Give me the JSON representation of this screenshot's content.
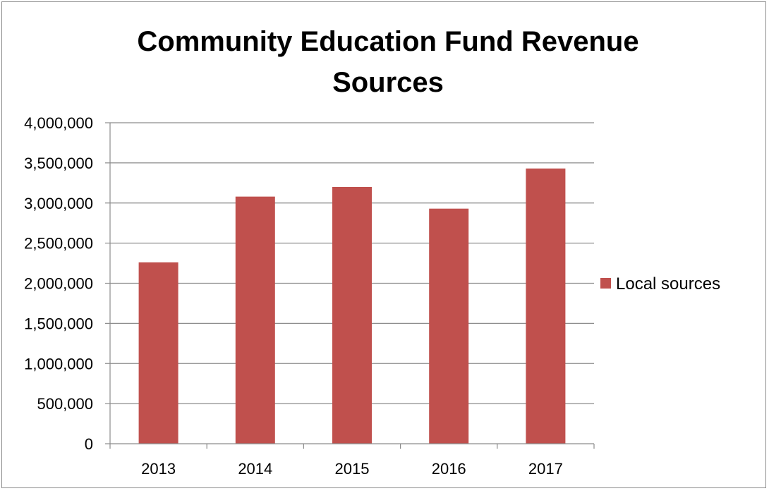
{
  "chart_data": {
    "type": "bar",
    "title_lines": [
      "Community Education Fund Revenue",
      "Sources"
    ],
    "categories": [
      "2013",
      "2014",
      "2015",
      "2016",
      "2017"
    ],
    "series": [
      {
        "name": "Local sources",
        "values": [
          2260000,
          3080000,
          3200000,
          2930000,
          3430000
        ],
        "color": "#c0504d"
      }
    ],
    "y_ticks": [
      0,
      500000,
      1000000,
      1500000,
      2000000,
      2500000,
      3000000,
      3500000,
      4000000
    ],
    "y_tick_labels": [
      "0",
      "500,000",
      "1,000,000",
      "1,500,000",
      "2,000,000",
      "2,500,000",
      "3,000,000",
      "3,500,000",
      "4,000,000"
    ],
    "ylim": [
      0,
      4000000
    ],
    "grid": true,
    "legend_position": "right",
    "xlabel": "",
    "ylabel": ""
  }
}
